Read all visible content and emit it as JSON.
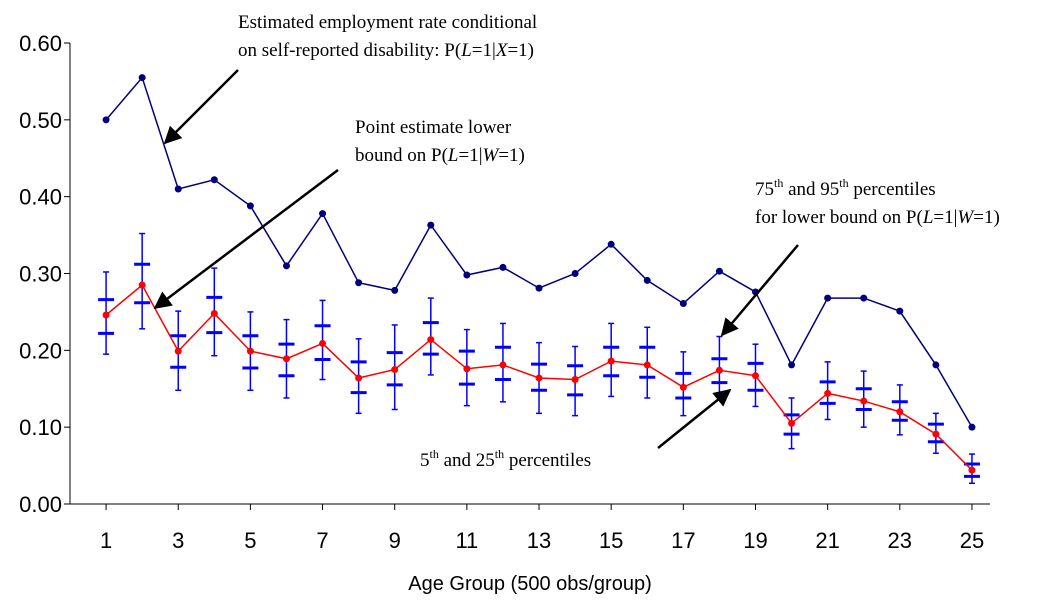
{
  "chart_data": {
    "type": "line",
    "x_label": "Age Group (500 obs/group)",
    "x": [
      1,
      2,
      3,
      4,
      5,
      6,
      7,
      8,
      9,
      10,
      11,
      12,
      13,
      14,
      15,
      16,
      17,
      18,
      19,
      20,
      21,
      22,
      23,
      24,
      25
    ],
    "xlim": [
      0,
      25.5
    ],
    "xticks": [
      1,
      3,
      5,
      7,
      9,
      11,
      13,
      15,
      17,
      19,
      21,
      23,
      25
    ],
    "ylim": [
      0,
      0.6
    ],
    "yticks": [
      {
        "value": 0,
        "label": "0.00"
      },
      {
        "value": 0.1,
        "label": "0.10"
      },
      {
        "value": 0.2,
        "label": "0.20"
      },
      {
        "value": 0.3,
        "label": "0.30"
      },
      {
        "value": 0.4,
        "label": "0.40"
      },
      {
        "value": 0.5,
        "label": "0.50"
      },
      {
        "value": 0.6,
        "label": "0.60"
      }
    ],
    "series": [
      {
        "color": "#00007f",
        "values": [
          0.5,
          0.555,
          0.41,
          0.422,
          0.388,
          0.31,
          0.378,
          0.288,
          0.278,
          0.363,
          0.298,
          0.308,
          0.281,
          0.3,
          0.338,
          0.291,
          0.261,
          0.303,
          0.276,
          0.181,
          0.268,
          0.268,
          0.251,
          0.181,
          0.1
        ]
      },
      {
        "color": "#ff0000",
        "values": [
          0.246,
          0.285,
          0.199,
          0.248,
          0.199,
          0.189,
          0.209,
          0.164,
          0.175,
          0.214,
          0.176,
          0.181,
          0.164,
          0.162,
          0.186,
          0.181,
          0.152,
          0.174,
          0.167,
          0.105,
          0.144,
          0.134,
          0.12,
          0.091,
          0.044
        ]
      }
    ],
    "percentiles": {
      "color": "#0000ff",
      "p5": [
        0.195,
        0.228,
        0.148,
        0.193,
        0.148,
        0.138,
        0.162,
        0.118,
        0.123,
        0.168,
        0.128,
        0.133,
        0.118,
        0.115,
        0.14,
        0.138,
        0.115,
        0.135,
        0.127,
        0.072,
        0.11,
        0.1,
        0.09,
        0.066,
        0.027
      ],
      "p25": [
        0.222,
        0.262,
        0.178,
        0.223,
        0.177,
        0.167,
        0.188,
        0.145,
        0.155,
        0.195,
        0.156,
        0.162,
        0.148,
        0.142,
        0.167,
        0.165,
        0.138,
        0.158,
        0.148,
        0.091,
        0.131,
        0.123,
        0.109,
        0.081,
        0.036
      ],
      "p75": [
        0.266,
        0.312,
        0.219,
        0.269,
        0.219,
        0.208,
        0.232,
        0.185,
        0.197,
        0.236,
        0.199,
        0.204,
        0.182,
        0.18,
        0.204,
        0.204,
        0.17,
        0.189,
        0.183,
        0.116,
        0.159,
        0.15,
        0.133,
        0.104,
        0.052
      ],
      "p95": [
        0.302,
        0.352,
        0.251,
        0.307,
        0.25,
        0.24,
        0.265,
        0.215,
        0.233,
        0.268,
        0.227,
        0.235,
        0.21,
        0.205,
        0.235,
        0.23,
        0.198,
        0.218,
        0.208,
        0.138,
        0.185,
        0.173,
        0.155,
        0.118,
        0.065
      ]
    },
    "annotations": [
      {
        "lines": [
          [
            "Estimated employment rate conditional"
          ],
          [
            "on self-reported disability: P(",
            {
              "text": "L",
              "italic": true
            },
            "=1|",
            {
              "text": "X",
              "italic": true
            },
            "=1)"
          ]
        ]
      },
      {
        "lines": [
          [
            "Point estimate lower"
          ],
          [
            "bound on P(",
            {
              "text": "L",
              "italic": true
            },
            "=1|",
            {
              "text": "W",
              "italic": true
            },
            "=1)"
          ]
        ]
      },
      {
        "lines": [
          [
            "75",
            {
              "text": "th",
              "sup": true
            },
            " and 95",
            {
              "text": "th",
              "sup": true
            },
            "  percentiles"
          ],
          [
            "for lower bound on P(",
            {
              "text": "L",
              "italic": true
            },
            "=1|",
            {
              "text": "W",
              "italic": true
            },
            "=1)"
          ]
        ]
      },
      {
        "lines": [
          [
            "5",
            {
              "text": "th",
              "sup": true
            },
            " and 25",
            {
              "text": "th",
              "sup": true
            },
            "  percentiles"
          ]
        ]
      }
    ]
  }
}
